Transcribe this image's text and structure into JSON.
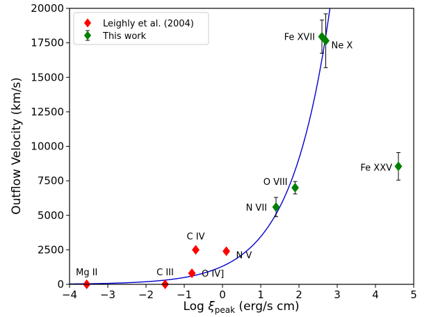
{
  "chart_data": {
    "type": "scatter",
    "xlabel_main": "Log ",
    "xlabel_symbol": "ξ",
    "xlabel_sub": "peak",
    "xlabel_unit": " (erg/s cm)",
    "ylabel": "Outflow Velocity (km/s)",
    "xlim": [
      -4,
      5
    ],
    "ylim": [
      0,
      20000
    ],
    "xticks": [
      -4,
      -3,
      -2,
      -1,
      0,
      1,
      2,
      3,
      4,
      5
    ],
    "yticks": [
      0,
      2500,
      5000,
      7500,
      10000,
      12500,
      15000,
      17500,
      20000
    ],
    "xtick_labels": [
      "−4",
      "−3",
      "−2",
      "−1",
      "0",
      "1",
      "2",
      "3",
      "4",
      "5"
    ],
    "ytick_labels": [
      "0",
      "2500",
      "5000",
      "7500",
      "10000",
      "12500",
      "15000",
      "17500",
      "20000"
    ],
    "legend_placement": "top-left",
    "series": [
      {
        "name": "Leighly et al. (2004)",
        "color": "#ff0000",
        "marker": "diamond",
        "points": [
          {
            "x": -3.55,
            "y": 0,
            "label": "Mg II"
          },
          {
            "x": -1.5,
            "y": 0,
            "label": "C III"
          },
          {
            "x": -0.8,
            "y": 800,
            "label": "O IV]"
          },
          {
            "x": -0.7,
            "y": 2500,
            "label": "C IV"
          },
          {
            "x": 0.1,
            "y": 2400,
            "label": "N V"
          }
        ]
      },
      {
        "name": "This work",
        "color": "#008000",
        "marker": "diamond",
        "errorbars": true,
        "points": [
          {
            "x": 1.4,
            "y": 5600,
            "yerr": 700,
            "label": "N VII"
          },
          {
            "x": 1.9,
            "y": 7000,
            "yerr": 450,
            "label": "O VIII"
          },
          {
            "x": 2.6,
            "y": 17950,
            "yerr": 1200,
            "label": "Fe XVII"
          },
          {
            "x": 2.7,
            "y": 17650,
            "yerr": 1950,
            "label": "Ne X"
          },
          {
            "x": 4.6,
            "y": 8550,
            "yerr": 1000,
            "label": "Fe XXV"
          }
        ]
      }
    ],
    "fit_curve": {
      "color": "#0000cc",
      "form": "exponential",
      "a": 1310,
      "b": 0.97,
      "x_start": -4
    }
  }
}
